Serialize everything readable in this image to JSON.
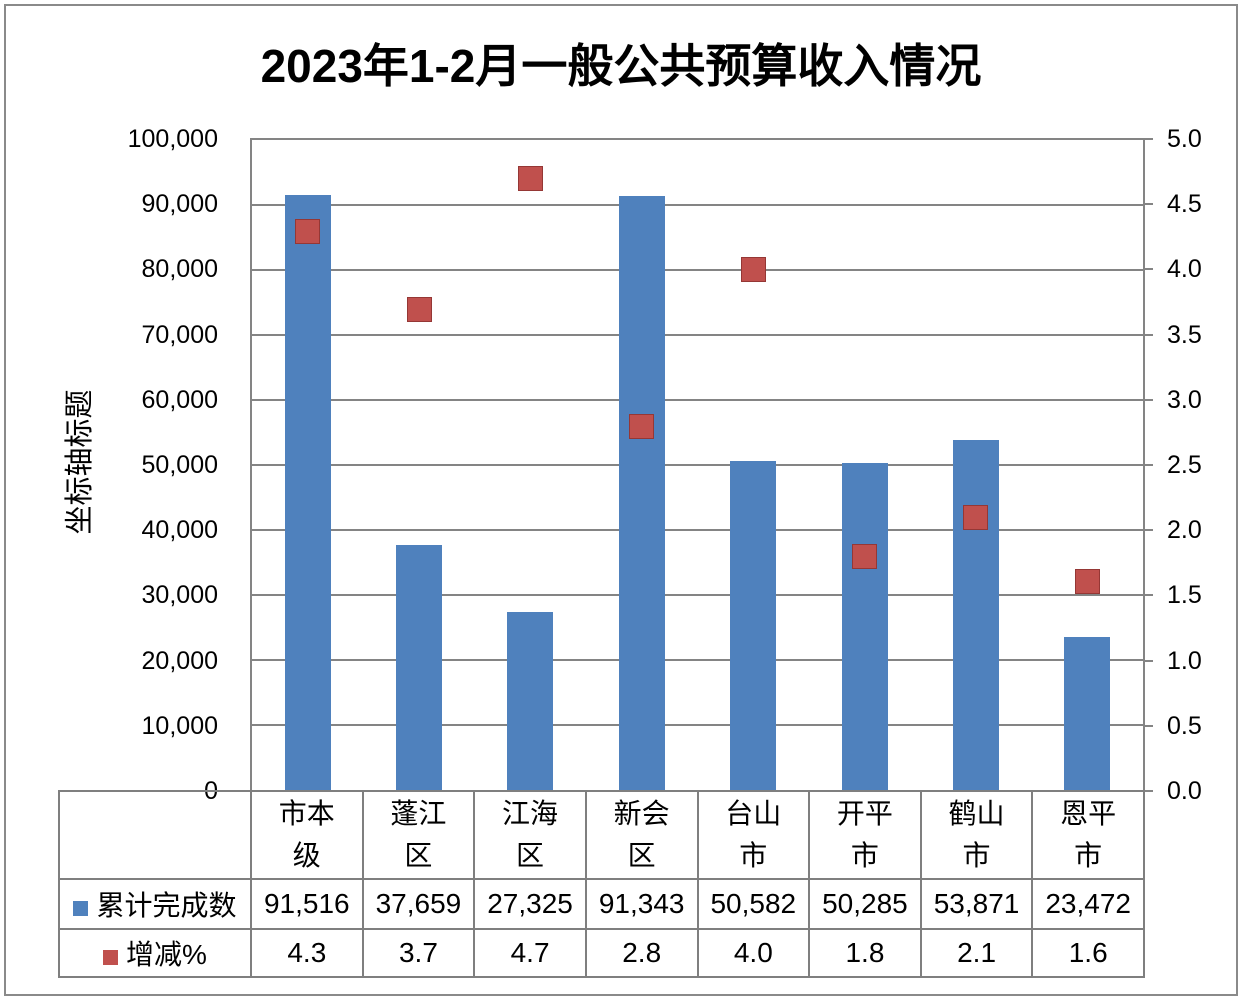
{
  "title": "2023年1-2月一般公共预算收入情况",
  "y_axis_title": "坐标轴标题",
  "colors": {
    "bar": "#4F81BD",
    "marker": "#C0504D",
    "marker_border": "#953735",
    "grid": "#848484",
    "table_border": "#7F7F7F"
  },
  "chart_data": {
    "type": "bar",
    "subtype": "combo-bar-with-scatter-markers",
    "title": "2023年1-2月一般公共预算收入情况",
    "ylabel": "坐标轴标题",
    "grid": true,
    "legend_position": "data-table-left",
    "categories": [
      "市本级",
      "蓬江区",
      "江海区",
      "新会区",
      "台山市",
      "开平市",
      "鹤山市",
      "恩平市"
    ],
    "categories_display": [
      "市本\n级",
      "蓬江\n区",
      "江海\n区",
      "新会\n区",
      "台山\n市",
      "开平\n市",
      "鹤山\n市",
      "恩平\n市"
    ],
    "series": [
      {
        "name": "累计完成数",
        "type": "bar",
        "axis": "left",
        "color": "#4F81BD",
        "values": [
          91516,
          37659,
          27325,
          91343,
          50582,
          50285,
          53871,
          23472
        ],
        "labels": [
          "91,516",
          "37,659",
          "27,325",
          "91,343",
          "50,582",
          "50,285",
          "53,871",
          "23,472"
        ]
      },
      {
        "name": "增减%",
        "type": "scatter",
        "axis": "right",
        "color": "#C0504D",
        "values": [
          4.3,
          3.7,
          4.7,
          2.8,
          4.0,
          1.8,
          2.1,
          1.6
        ],
        "labels": [
          "4.3",
          "3.7",
          "4.7",
          "2.8",
          "4.0",
          "1.8",
          "2.1",
          "1.6"
        ]
      }
    ],
    "left_axis": {
      "min": 0,
      "max": 100000,
      "step": 10000,
      "tick_labels": [
        "100,000",
        "90,000",
        "80,000",
        "70,000",
        "60,000",
        "50,000",
        "40,000",
        "30,000",
        "20,000",
        "10,000",
        "0"
      ]
    },
    "right_axis": {
      "min": 0.0,
      "max": 5.0,
      "step": 0.5,
      "tick_labels": [
        "5.0",
        "4.5",
        "4.0",
        "3.5",
        "3.0",
        "2.5",
        "2.0",
        "1.5",
        "1.0",
        "0.5",
        "0.0"
      ]
    }
  }
}
